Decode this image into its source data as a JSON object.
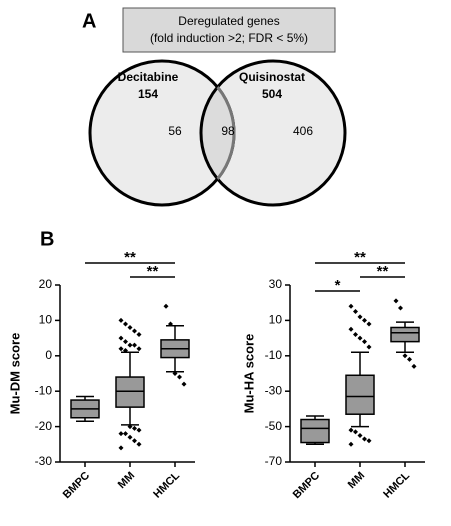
{
  "panel_labels": [
    "A",
    "B"
  ],
  "chart_data": [
    {
      "type": "venn",
      "title": "Deregulated genes",
      "subtitle": "(fold induction >2; FDR < 5%)",
      "sets": [
        {
          "name": "Decitabine",
          "size": 154
        },
        {
          "name": "Quisinostat",
          "size": 504
        }
      ],
      "regions": [
        56,
        98,
        406
      ]
    },
    {
      "type": "box",
      "ylabel": "Mu-DM score",
      "categories": [
        "BMPC",
        "MM",
        "HMCL"
      ],
      "color": "#999999",
      "ylim": [
        -30,
        20
      ],
      "yticks": [
        -30,
        -20,
        -10,
        0,
        10,
        20
      ],
      "boxes": [
        {
          "whislo": -18.5,
          "q1": -17.5,
          "med": -15,
          "q3": -12.5,
          "whishi": -11.5,
          "fliers": []
        },
        {
          "whislo": -19.5,
          "q1": -14.5,
          "med": -10,
          "q3": -6,
          "whishi": 1,
          "fliers": [
            10,
            9,
            8,
            7,
            6,
            5,
            4,
            3,
            3,
            2,
            2,
            1.5,
            -20,
            -20.5,
            -21,
            -22,
            -22,
            -23,
            -24,
            -25,
            -26
          ]
        },
        {
          "whislo": -4.5,
          "q1": -0.5,
          "med": 2,
          "q3": 4.5,
          "whishi": 8.5,
          "fliers": [
            14,
            9,
            -5,
            -6,
            -8
          ]
        }
      ],
      "annotations": [
        {
          "text": "**",
          "between": [
            0,
            2
          ]
        },
        {
          "text": "**",
          "between": [
            1,
            2
          ]
        }
      ]
    },
    {
      "type": "box",
      "ylabel": "Mu-HA score",
      "categories": [
        "BMPC",
        "MM",
        "HMCL"
      ],
      "color": "#999999",
      "ylim": [
        -70,
        30
      ],
      "yticks": [
        -70,
        -50,
        -30,
        -10,
        10,
        30
      ],
      "boxes": [
        {
          "whislo": -60,
          "q1": -59,
          "med": -51,
          "q3": -46,
          "whishi": -44,
          "fliers": []
        },
        {
          "whislo": -50,
          "q1": -43,
          "med": -33,
          "q3": -21,
          "whishi": -8,
          "fliers": [
            18,
            15,
            12,
            10,
            8,
            5,
            2,
            0,
            -2,
            -5,
            -52,
            -53,
            -55,
            -57,
            -58,
            -60
          ]
        },
        {
          "whislo": -8,
          "q1": -2,
          "med": 3,
          "q3": 6,
          "whishi": 9,
          "fliers": [
            21,
            17,
            -10,
            -12,
            -16
          ]
        }
      ],
      "annotations": [
        {
          "text": "**",
          "between": [
            0,
            2
          ]
        },
        {
          "text": "**",
          "between": [
            1,
            2
          ]
        },
        {
          "text": "*",
          "between": [
            0,
            1
          ]
        }
      ]
    }
  ]
}
